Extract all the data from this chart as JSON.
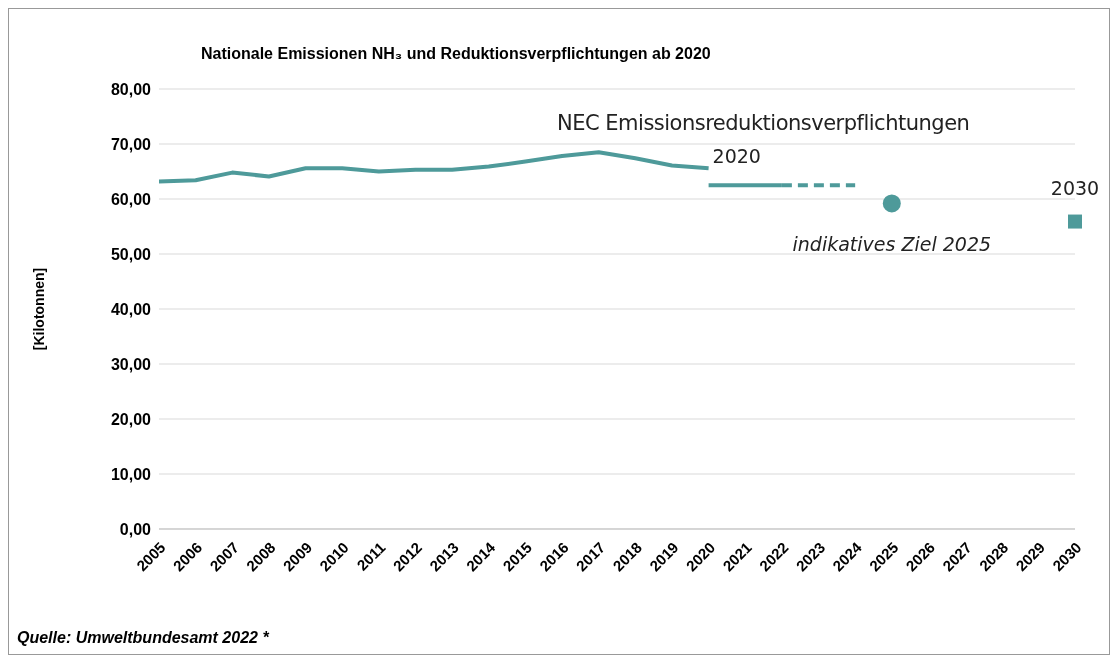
{
  "chart_data": {
    "type": "line",
    "title": "Nationale Emissionen NH₃ und Reduktionsverpflichtungen ab 2020",
    "ylabel": "[Kilotonnen]",
    "categories": [
      "2005",
      "2006",
      "2007",
      "2008",
      "2009",
      "2010",
      "2011",
      "2012",
      "2013",
      "2014",
      "2015",
      "2016",
      "2017",
      "2018",
      "2019",
      "2020",
      "2021",
      "2022",
      "2023",
      "2024",
      "2025",
      "2026",
      "2027",
      "2028",
      "2029",
      "2030"
    ],
    "series": [
      {
        "color": "#4e9a9a",
        "line_style": "solid",
        "marker": "none",
        "values": [
          63.2,
          63.4,
          64.8,
          64.1,
          65.6,
          65.6,
          65.0,
          65.3,
          65.3,
          65.9,
          66.8,
          67.8,
          68.5,
          67.4,
          66.1,
          65.6,
          null,
          null,
          null,
          null,
          null,
          null,
          null,
          null,
          null,
          null
        ]
      },
      {
        "name": "2020",
        "color": "#4e9a9a",
        "line_style": "solid",
        "marker": "none",
        "values": [
          null,
          null,
          null,
          null,
          null,
          null,
          null,
          null,
          null,
          null,
          null,
          null,
          null,
          null,
          null,
          62.5,
          62.5,
          62.5,
          null,
          null,
          null,
          null,
          null,
          null,
          null,
          null
        ]
      },
      {
        "color": "#4e9a9a",
        "line_style": "dashed",
        "marker": "none",
        "values": [
          null,
          null,
          null,
          null,
          null,
          null,
          null,
          null,
          null,
          null,
          null,
          null,
          null,
          null,
          null,
          null,
          null,
          62.5,
          62.5,
          62.5,
          null,
          null,
          null,
          null,
          null,
          null
        ]
      },
      {
        "type": "scatter",
        "name": "indikatives Ziel 2025",
        "color": "#4e9a9a",
        "marker": "circle",
        "values": [
          null,
          null,
          null,
          null,
          null,
          null,
          null,
          null,
          null,
          null,
          null,
          null,
          null,
          null,
          null,
          null,
          null,
          null,
          null,
          null,
          59.2,
          null,
          null,
          null,
          null,
          null
        ]
      },
      {
        "type": "scatter",
        "name": "2030",
        "color": "#4e9a9a",
        "marker": "square",
        "values": [
          null,
          null,
          null,
          null,
          null,
          null,
          null,
          null,
          null,
          null,
          null,
          null,
          null,
          null,
          null,
          null,
          null,
          null,
          null,
          null,
          null,
          null,
          null,
          null,
          null,
          55.9
        ]
      }
    ],
    "ylim": [
      0,
      80
    ],
    "yticks": [
      {
        "value": 0,
        "label": "0,00"
      },
      {
        "value": 10,
        "label": "10,00"
      },
      {
        "value": 20,
        "label": "20,00"
      },
      {
        "value": 30,
        "label": "30,00"
      },
      {
        "value": 40,
        "label": "40,00"
      },
      {
        "value": 50,
        "label": "50,00"
      },
      {
        "value": 60,
        "label": "60,00"
      },
      {
        "value": 70,
        "label": "70,00"
      },
      {
        "value": 80,
        "label": "80,00"
      }
    ],
    "grid": "y",
    "legend": false,
    "annotations": [
      "NEC Emissionsreduktionsverpflichtungen",
      "Quelle: Umweltbundesamt 2022 *"
    ]
  }
}
